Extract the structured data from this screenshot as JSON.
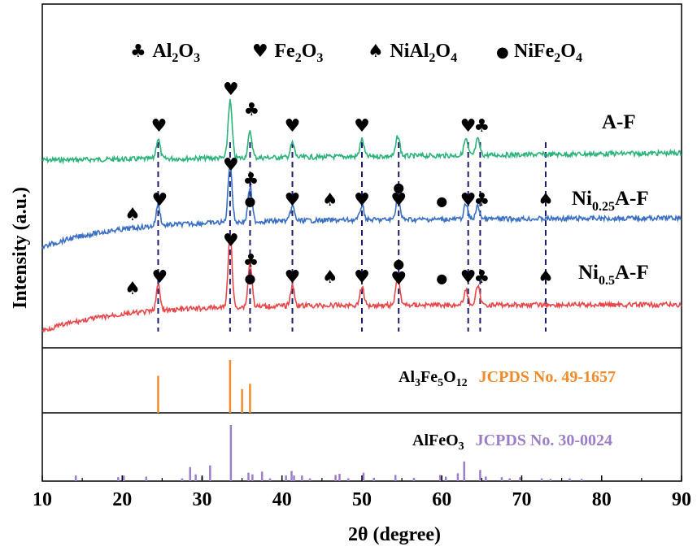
{
  "chart_data": {
    "type": "line",
    "xlabel": "2θ (degree)",
    "ylabel": "Intensity (a.u.)",
    "xlim": [
      10,
      90
    ],
    "xticks": [
      "10",
      "20",
      "30",
      "40",
      "50",
      "60",
      "70",
      "80",
      "90"
    ],
    "legend": [
      {
        "symbol": "♣",
        "text": "Al",
        "sub1": "2",
        "text2": "O",
        "sub2": "3"
      },
      {
        "symbol": "♥",
        "text": "Fe",
        "sub1": "2",
        "text2": "O",
        "sub2": "3"
      },
      {
        "symbol": "♠",
        "text": "NiAl",
        "sub1": "2",
        "text2": "O",
        "sub2": "4"
      },
      {
        "symbol": "●",
        "text": "NiFe",
        "sub1": "2",
        "text2": "O",
        "sub2": "4"
      }
    ],
    "series": [
      {
        "name": "A-F",
        "label_main": "A-F",
        "label_sub": "",
        "label_tail": "",
        "color": "#2bb37a",
        "peaks": [
          [
            24.5,
            0.35
          ],
          [
            33.5,
            1.0
          ],
          [
            36.0,
            0.45
          ],
          [
            41.3,
            0.25
          ],
          [
            50.0,
            0.3
          ],
          [
            54.5,
            0.35
          ],
          [
            63.0,
            0.28
          ],
          [
            64.5,
            0.28
          ]
        ]
      },
      {
        "name": "Ni0.25A-F",
        "label_main": "Ni",
        "label_sub": "0.25",
        "label_tail": "A-F",
        "color": "#3a6fc4",
        "peaks": [
          [
            24.5,
            0.35
          ],
          [
            33.5,
            1.0
          ],
          [
            36.0,
            0.6
          ],
          [
            41.3,
            0.25
          ],
          [
            50.0,
            0.25
          ],
          [
            54.5,
            0.4
          ],
          [
            63.0,
            0.25
          ],
          [
            64.5,
            0.22
          ]
        ]
      },
      {
        "name": "Ni0.5A-F",
        "label_main": "Ni",
        "label_sub": "0.5",
        "label_tail": "A-F",
        "color": "#e8474a",
        "peaks": [
          [
            24.5,
            0.35
          ],
          [
            33.5,
            1.0
          ],
          [
            36.0,
            0.6
          ],
          [
            41.3,
            0.28
          ],
          [
            50.0,
            0.25
          ],
          [
            54.5,
            0.4
          ],
          [
            63.0,
            0.2
          ],
          [
            64.5,
            0.25
          ]
        ]
      }
    ],
    "reference_lines": [
      24.5,
      33.5,
      36.0,
      41.3,
      50.0,
      54.6,
      63.3,
      64.8,
      73.0
    ],
    "markers": [
      {
        "trace": "A-F",
        "x": 24.6,
        "symbol": "♥"
      },
      {
        "trace": "A-F",
        "x": 33.6,
        "symbol": "♥"
      },
      {
        "trace": "A-F",
        "x": 36.2,
        "symbol": "♣"
      },
      {
        "trace": "A-F",
        "x": 41.3,
        "symbol": "♥"
      },
      {
        "trace": "A-F",
        "x": 50.0,
        "symbol": "♥"
      },
      {
        "trace": "A-F",
        "x": 54.6,
        "symbol": "♥"
      },
      {
        "trace": "A-F",
        "x": 63.3,
        "symbol": "♥"
      },
      {
        "trace": "A-F",
        "x": 65.0,
        "symbol": "♣"
      },
      {
        "trace": "Ni0.25A-F",
        "x": 21.3,
        "symbol": "♠"
      },
      {
        "trace": "Ni0.25A-F",
        "x": 24.7,
        "symbol": "♥"
      },
      {
        "trace": "Ni0.25A-F",
        "x": 33.6,
        "symbol": "♥"
      },
      {
        "trace": "Ni0.25A-F",
        "x": 36.0,
        "symbol": "●"
      },
      {
        "trace": "Ni0.25A-F",
        "x": 36.1,
        "symbol": "♣"
      },
      {
        "trace": "Ni0.25A-F",
        "x": 41.3,
        "symbol": "♥"
      },
      {
        "trace": "Ni0.25A-F",
        "x": 46.0,
        "symbol": "♠"
      },
      {
        "trace": "Ni0.25A-F",
        "x": 50.0,
        "symbol": "♥"
      },
      {
        "trace": "Ni0.25A-F",
        "x": 54.6,
        "symbol": "●"
      },
      {
        "trace": "Ni0.25A-F",
        "x": 54.6,
        "symbol": "♥"
      },
      {
        "trace": "Ni0.25A-F",
        "x": 60.0,
        "symbol": "●"
      },
      {
        "trace": "Ni0.25A-F",
        "x": 63.3,
        "symbol": "♥"
      },
      {
        "trace": "Ni0.25A-F",
        "x": 65.0,
        "symbol": "♣"
      },
      {
        "trace": "Ni0.25A-F",
        "x": 73.0,
        "symbol": "♠"
      },
      {
        "trace": "Ni0.5A-F",
        "x": 21.3,
        "symbol": "♠"
      },
      {
        "trace": "Ni0.5A-F",
        "x": 24.7,
        "symbol": "♥"
      },
      {
        "trace": "Ni0.5A-F",
        "x": 33.6,
        "symbol": "♥"
      },
      {
        "trace": "Ni0.5A-F",
        "x": 36.0,
        "symbol": "●"
      },
      {
        "trace": "Ni0.5A-F",
        "x": 36.1,
        "symbol": "♣"
      },
      {
        "trace": "Ni0.5A-F",
        "x": 41.3,
        "symbol": "♥"
      },
      {
        "trace": "Ni0.5A-F",
        "x": 46.0,
        "symbol": "♠"
      },
      {
        "trace": "Ni0.5A-F",
        "x": 50.0,
        "symbol": "♥"
      },
      {
        "trace": "Ni0.5A-F",
        "x": 54.6,
        "symbol": "●"
      },
      {
        "trace": "Ni0.5A-F",
        "x": 54.6,
        "symbol": "♥"
      },
      {
        "trace": "Ni0.5A-F",
        "x": 60.0,
        "symbol": "●"
      },
      {
        "trace": "Ni0.5A-F",
        "x": 63.3,
        "symbol": "♥"
      },
      {
        "trace": "Ni0.5A-F",
        "x": 65.0,
        "symbol": "♣"
      },
      {
        "trace": "Ni0.5A-F",
        "x": 73.0,
        "symbol": "♠"
      }
    ],
    "references": [
      {
        "formula": "Al",
        "sub1": "3",
        "mid": "Fe",
        "sub2": "5",
        "mid2": "O",
        "sub3": "12",
        "card": "JCPDS No. 49-1657",
        "color": "#f08a2a",
        "sticks": [
          [
            24.5,
            0.7
          ],
          [
            33.5,
            1.0
          ],
          [
            35.0,
            0.45
          ],
          [
            36.0,
            0.55
          ]
        ]
      },
      {
        "formula": "AlFeO",
        "sub1": "3",
        "mid": "",
        "sub2": "",
        "mid2": "",
        "sub3": "",
        "card": "JCPDS No. 30-0024",
        "color": "#9b7fc8",
        "sticks": [
          [
            14.2,
            0.1
          ],
          [
            19.5,
            0.07
          ],
          [
            20.2,
            0.1
          ],
          [
            23.0,
            0.08
          ],
          [
            27.5,
            0.05
          ],
          [
            28.5,
            0.25
          ],
          [
            29.2,
            0.12
          ],
          [
            30.0,
            0.08
          ],
          [
            31.0,
            0.28
          ],
          [
            33.6,
            1.0
          ],
          [
            35.8,
            0.15
          ],
          [
            36.3,
            0.12
          ],
          [
            37.5,
            0.17
          ],
          [
            38.5,
            0.05
          ],
          [
            40.5,
            0.1
          ],
          [
            41.2,
            0.18
          ],
          [
            41.5,
            0.1
          ],
          [
            42.5,
            0.1
          ],
          [
            43.5,
            0.05
          ],
          [
            46.7,
            0.11
          ],
          [
            47.2,
            0.13
          ],
          [
            48.3,
            0.05
          ],
          [
            50.2,
            0.15
          ],
          [
            51.5,
            0.06
          ],
          [
            54.2,
            0.11
          ],
          [
            56.5,
            0.06
          ],
          [
            59.8,
            0.11
          ],
          [
            60.5,
            0.08
          ],
          [
            62.0,
            0.14
          ],
          [
            62.8,
            0.35
          ],
          [
            64.8,
            0.2
          ],
          [
            65.5,
            0.08
          ],
          [
            67.5,
            0.07
          ],
          [
            68.5,
            0.05
          ],
          [
            69.8,
            0.07
          ],
          [
            72.5,
            0.05
          ],
          [
            73.6,
            0.04
          ],
          [
            76.0,
            0.05
          ],
          [
            77.5,
            0.04
          ]
        ]
      }
    ]
  }
}
